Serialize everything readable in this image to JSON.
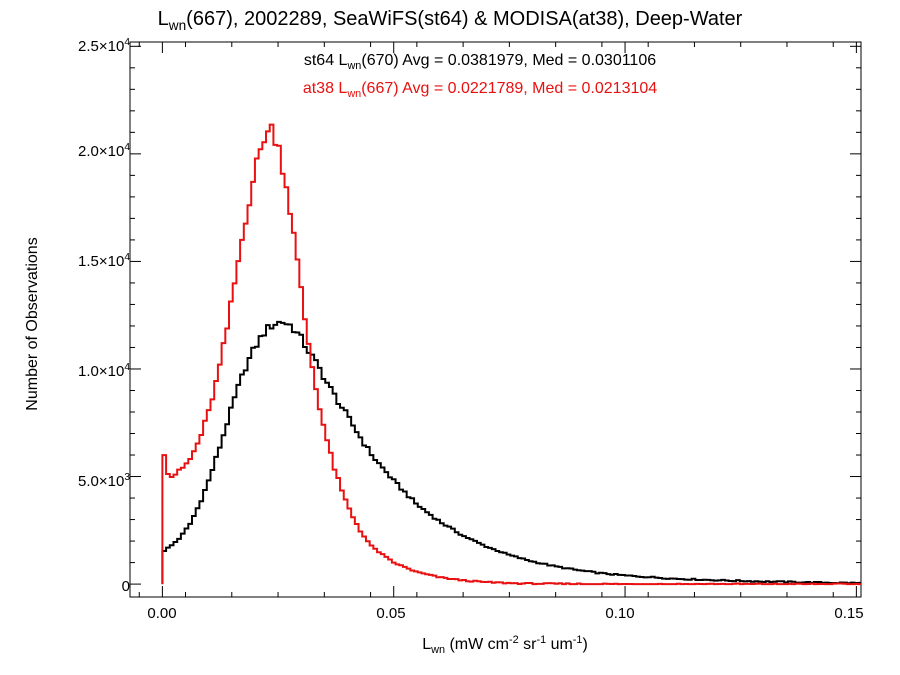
{
  "chart_data": {
    "type": "line",
    "title": {
      "main_prefix": "L",
      "main_sub": "wn",
      "main_rest": "(667), 2002289, SeaWiFS(st64) & MODISA(at38), Deep-Water"
    },
    "xlabel": {
      "prefix": "L",
      "sub": "wn",
      "rest1": " (mW cm",
      "sup1": "-2",
      "rest2": " sr",
      "sup2": "-1",
      "rest3": " um",
      "sup3": "-1",
      "rest4": ")"
    },
    "ylabel": "Number of Observations",
    "xlim": [
      -0.007,
      0.151
    ],
    "ylim": [
      -600,
      25200
    ],
    "x_ticks": [
      {
        "value": 0.0,
        "label": "0.00"
      },
      {
        "value": 0.05,
        "label": "0.05"
      },
      {
        "value": 0.1,
        "label": "0.10"
      },
      {
        "value": 0.15,
        "label": "0.15"
      }
    ],
    "y_ticks": [
      {
        "value": 0,
        "mant": "0",
        "exp": ""
      },
      {
        "value": 5000,
        "mant": "5.0×10",
        "exp": "3"
      },
      {
        "value": 10000,
        "mant": "1.0×10",
        "exp": "4"
      },
      {
        "value": 15000,
        "mant": "1.5×10",
        "exp": "4"
      },
      {
        "value": 20000,
        "mant": "2.0×10",
        "exp": "4"
      },
      {
        "value": 25000,
        "mant": "2.5×10",
        "exp": "4"
      }
    ],
    "bin_width": 0.0008,
    "series": [
      {
        "name": "st64",
        "legend": {
          "pre": "st64 L",
          "sub": "wn",
          "post": "(670) Avg = 0.0381979, Med = 0.0301106"
        },
        "color": "#000000",
        "points": [
          [
            0.0,
            1500
          ],
          [
            0.002,
            1800
          ],
          [
            0.004,
            2200
          ],
          [
            0.006,
            2800
          ],
          [
            0.008,
            3700
          ],
          [
            0.01,
            4800
          ],
          [
            0.012,
            6100
          ],
          [
            0.014,
            7500
          ],
          [
            0.016,
            8900
          ],
          [
            0.018,
            10100
          ],
          [
            0.02,
            11000
          ],
          [
            0.022,
            11700
          ],
          [
            0.024,
            12100
          ],
          [
            0.026,
            12200
          ],
          [
            0.028,
            12000
          ],
          [
            0.03,
            11400
          ],
          [
            0.032,
            10700
          ],
          [
            0.034,
            10000
          ],
          [
            0.036,
            9200
          ],
          [
            0.038,
            8500
          ],
          [
            0.04,
            7800
          ],
          [
            0.042,
            7100
          ],
          [
            0.044,
            6400
          ],
          [
            0.046,
            5800
          ],
          [
            0.048,
            5300
          ],
          [
            0.05,
            4800
          ],
          [
            0.055,
            3700
          ],
          [
            0.06,
            2900
          ],
          [
            0.065,
            2250
          ],
          [
            0.07,
            1750
          ],
          [
            0.075,
            1350
          ],
          [
            0.08,
            1050
          ],
          [
            0.085,
            820
          ],
          [
            0.09,
            640
          ],
          [
            0.095,
            500
          ],
          [
            0.1,
            400
          ],
          [
            0.11,
            260
          ],
          [
            0.12,
            180
          ],
          [
            0.13,
            120
          ],
          [
            0.14,
            80
          ],
          [
            0.15,
            50
          ]
        ]
      },
      {
        "name": "at38",
        "legend": {
          "pre": "at38 L",
          "sub": "wn",
          "post": "(667) Avg = 0.0221789, Med = 0.0213104"
        },
        "color": "#e81010",
        "points": [
          [
            0.0,
            6900
          ],
          [
            0.0008,
            5300
          ],
          [
            0.002,
            5000
          ],
          [
            0.004,
            5300
          ],
          [
            0.006,
            5800
          ],
          [
            0.008,
            6700
          ],
          [
            0.01,
            8000
          ],
          [
            0.012,
            9700
          ],
          [
            0.014,
            11900
          ],
          [
            0.016,
            14500
          ],
          [
            0.018,
            17000
          ],
          [
            0.02,
            19200
          ],
          [
            0.022,
            20800
          ],
          [
            0.0235,
            21200
          ],
          [
            0.025,
            20500
          ],
          [
            0.027,
            18300
          ],
          [
            0.029,
            15300
          ],
          [
            0.031,
            12000
          ],
          [
            0.033,
            9300
          ],
          [
            0.035,
            7200
          ],
          [
            0.037,
            5500
          ],
          [
            0.039,
            4200
          ],
          [
            0.041,
            3200
          ],
          [
            0.043,
            2400
          ],
          [
            0.045,
            1800
          ],
          [
            0.048,
            1300
          ],
          [
            0.05,
            1000
          ],
          [
            0.055,
            560
          ],
          [
            0.06,
            310
          ],
          [
            0.065,
            170
          ],
          [
            0.07,
            90
          ],
          [
            0.075,
            45
          ],
          [
            0.08,
            20
          ],
          [
            0.09,
            5
          ],
          [
            0.1,
            0
          ],
          [
            0.15,
            0
          ]
        ]
      }
    ]
  }
}
